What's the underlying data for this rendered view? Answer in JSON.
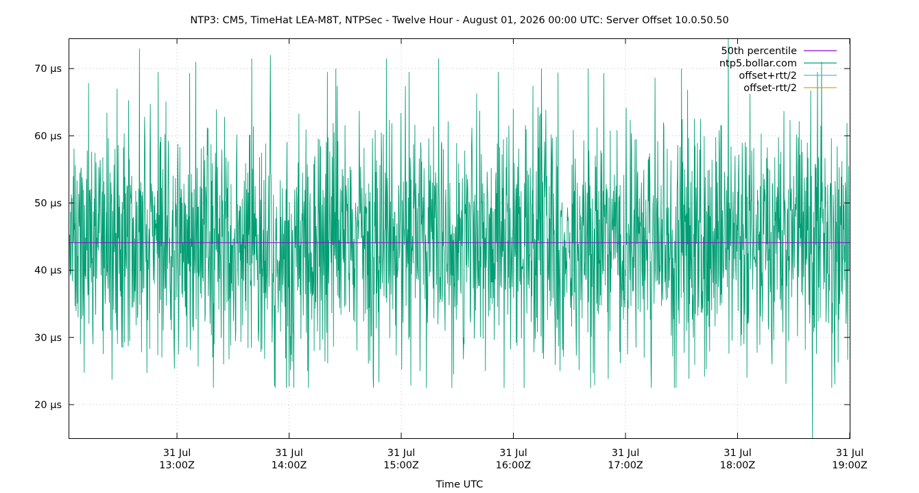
{
  "chart_data": {
    "type": "line",
    "title": "NTP3: CM5, TimeHat LEA-M8T, NTPSec - Twelve Hour - August 01, 2026 00:00 UTC: Server Offset 10.0.50.50",
    "xlabel": "Time UTC",
    "ylabel": "",
    "xlim": [
      "2026-07-31T12:02Z",
      "2026-07-31T19:00Z"
    ],
    "ylim": [
      15,
      74.5
    ],
    "y_unit": "µs",
    "y_ticks": [
      {
        "value": 20,
        "label": "20 µs"
      },
      {
        "value": 30,
        "label": "30 µs"
      },
      {
        "value": 40,
        "label": "40 µs"
      },
      {
        "value": 50,
        "label": "50 µs"
      },
      {
        "value": 60,
        "label": "60 µs"
      },
      {
        "value": 70,
        "label": "70 µs"
      }
    ],
    "x_ticks": [
      {
        "value": "2026-07-31T13:00Z",
        "line1": "31 Jul",
        "line2": "13:00Z"
      },
      {
        "value": "2026-07-31T14:00Z",
        "line1": "31 Jul",
        "line2": "14:00Z"
      },
      {
        "value": "2026-07-31T15:00Z",
        "line1": "31 Jul",
        "line2": "15:00Z"
      },
      {
        "value": "2026-07-31T16:00Z",
        "line1": "31 Jul",
        "line2": "16:00Z"
      },
      {
        "value": "2026-07-31T17:00Z",
        "line1": "31 Jul",
        "line2": "17:00Z"
      },
      {
        "value": "2026-07-31T18:00Z",
        "line1": "31 Jul",
        "line2": "18:00Z"
      },
      {
        "value": "2026-07-31T19:00Z",
        "line1": "31 Jul",
        "line2": "19:00Z"
      }
    ],
    "grid": true,
    "legend_position": "top-right",
    "series": [
      {
        "name": "50th percentile",
        "color": "#9400d3",
        "kind": "constant",
        "value": 44.1
      },
      {
        "name": "ntp5.bollar.com",
        "color": "#009e73",
        "kind": "noisy-offset",
        "mean": 44.1,
        "spread": 8.5,
        "min_observed": 15.0,
        "max_observed": 74.5,
        "points": [
          [
            "2026-07-31T12:02Z",
            45
          ],
          [
            "2026-07-31T12:10Z",
            52
          ],
          [
            "2026-07-31T12:15Z",
            29
          ],
          [
            "2026-07-31T12:28Z",
            67
          ],
          [
            "2026-07-31T12:40Z",
            73
          ],
          [
            "2026-07-31T12:52Z",
            27
          ],
          [
            "2026-07-31T13:10Z",
            71
          ],
          [
            "2026-07-31T13:25Z",
            26
          ],
          [
            "2026-07-31T13:40Z",
            71.5
          ],
          [
            "2026-07-31T13:50Z",
            72
          ],
          [
            "2026-07-31T14:10Z",
            25
          ],
          [
            "2026-07-31T14:25Z",
            70
          ],
          [
            "2026-07-31T14:45Z",
            24
          ],
          [
            "2026-07-31T14:52Z",
            71.5
          ],
          [
            "2026-07-31T15:10Z",
            25
          ],
          [
            "2026-07-31T15:20Z",
            71.5
          ],
          [
            "2026-07-31T15:45Z",
            25
          ],
          [
            "2026-07-31T16:00Z",
            64
          ],
          [
            "2026-07-31T16:15Z",
            70
          ],
          [
            "2026-07-31T16:25Z",
            25
          ],
          [
            "2026-07-31T16:40Z",
            70
          ],
          [
            "2026-07-31T17:10Z",
            27
          ],
          [
            "2026-07-31T17:30Z",
            70
          ],
          [
            "2026-07-31T17:55Z",
            74.5
          ],
          [
            "2026-07-31T18:05Z",
            24
          ],
          [
            "2026-07-31T18:40Z",
            15
          ],
          [
            "2026-07-31T18:45Z",
            71
          ],
          [
            "2026-07-31T18:52Z",
            23
          ],
          [
            "2026-07-31T19:00Z",
            40
          ]
        ]
      },
      {
        "name": "offset+rtt/2",
        "color": "#56b4e9",
        "kind": "not-drawn"
      },
      {
        "name": "offset-rtt/2",
        "color": "#e6a100",
        "kind": "not-drawn"
      }
    ]
  }
}
